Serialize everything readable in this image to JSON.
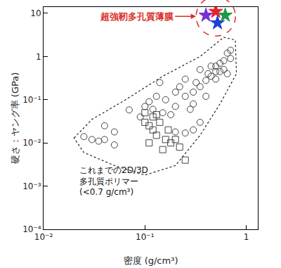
{
  "chart_data": {
    "type": "scatter",
    "log": true,
    "grid": false,
    "xlabel": "密度 (g/cm³)",
    "ylabel": "硬さ：ヤング率 (GPa)",
    "xlim": [
      0.01,
      1.3
    ],
    "ylim": [
      0.0001,
      14
    ],
    "xticks": [
      {
        "value": 0.01,
        "label": "10⁻²"
      },
      {
        "value": 0.1,
        "label": "10⁻¹"
      },
      1
    ],
    "yticks": [
      {
        "value": 0.0001,
        "label": "10⁻⁴"
      },
      {
        "value": 0.001,
        "label": "10⁻³"
      },
      {
        "value": 0.01,
        "label": "10⁻²"
      },
      {
        "value": 0.1,
        "label": "10⁻¹"
      },
      1,
      10
    ],
    "annotations": [
      "超強靭多孔質薄膜",
      "これまでの2D/3D\n多孔質ポリマー\n(<0.7 g/cm³)"
    ],
    "series": [
      {
        "marker": "circle-open",
        "color": "#444444",
        "x": [
          0.025,
          0.03,
          0.035,
          0.04,
          0.04,
          0.05,
          0.05,
          0.07,
          0.09,
          0.1,
          0.11,
          0.12,
          0.13,
          0.14,
          0.15,
          0.16,
          0.18,
          0.2,
          0.2,
          0.22,
          0.25,
          0.25,
          0.28,
          0.3,
          0.3,
          0.32,
          0.35,
          0.35,
          0.4,
          0.4,
          0.42,
          0.45,
          0.5,
          0.5,
          0.55,
          0.55,
          0.6,
          0.6,
          0.65,
          0.65,
          0.7,
          0.7,
          0.5,
          0.45,
          0.25,
          0.3,
          0.35,
          0.2
        ],
        "values": [
          0.014,
          0.012,
          0.011,
          0.025,
          0.012,
          0.009,
          0.018,
          0.058,
          0.04,
          0.07,
          0.09,
          0.06,
          0.12,
          0.25,
          0.05,
          0.1,
          0.045,
          0.07,
          0.15,
          0.2,
          0.12,
          0.3,
          0.06,
          0.15,
          0.08,
          0.25,
          0.2,
          0.5,
          0.28,
          0.12,
          0.4,
          0.35,
          0.6,
          0.3,
          0.45,
          0.7,
          0.8,
          0.5,
          1.2,
          0.4,
          1.4,
          0.9,
          0.45,
          0.6,
          0.017,
          0.02,
          0.03,
          0.018
        ]
      },
      {
        "marker": "square-open",
        "color": "#444444",
        "x": [
          0.1,
          0.1,
          0.11,
          0.12,
          0.12,
          0.13,
          0.14,
          0.15,
          0.16,
          0.17,
          0.18,
          0.2,
          0.22,
          0.25,
          0.11,
          0.13
        ],
        "values": [
          0.05,
          0.03,
          0.025,
          0.04,
          0.02,
          0.015,
          0.03,
          0.007,
          0.012,
          0.02,
          0.01,
          0.012,
          0.008,
          0.004,
          0.01,
          0.045
        ]
      },
      {
        "marker": "star",
        "colors": [
          "#7b2fd6",
          "#e8202a",
          "#1f3fd6",
          "#1e9a4a"
        ],
        "x": [
          0.4,
          0.5,
          0.52,
          0.62
        ],
        "values": [
          9,
          11,
          6,
          9
        ]
      }
    ]
  }
}
